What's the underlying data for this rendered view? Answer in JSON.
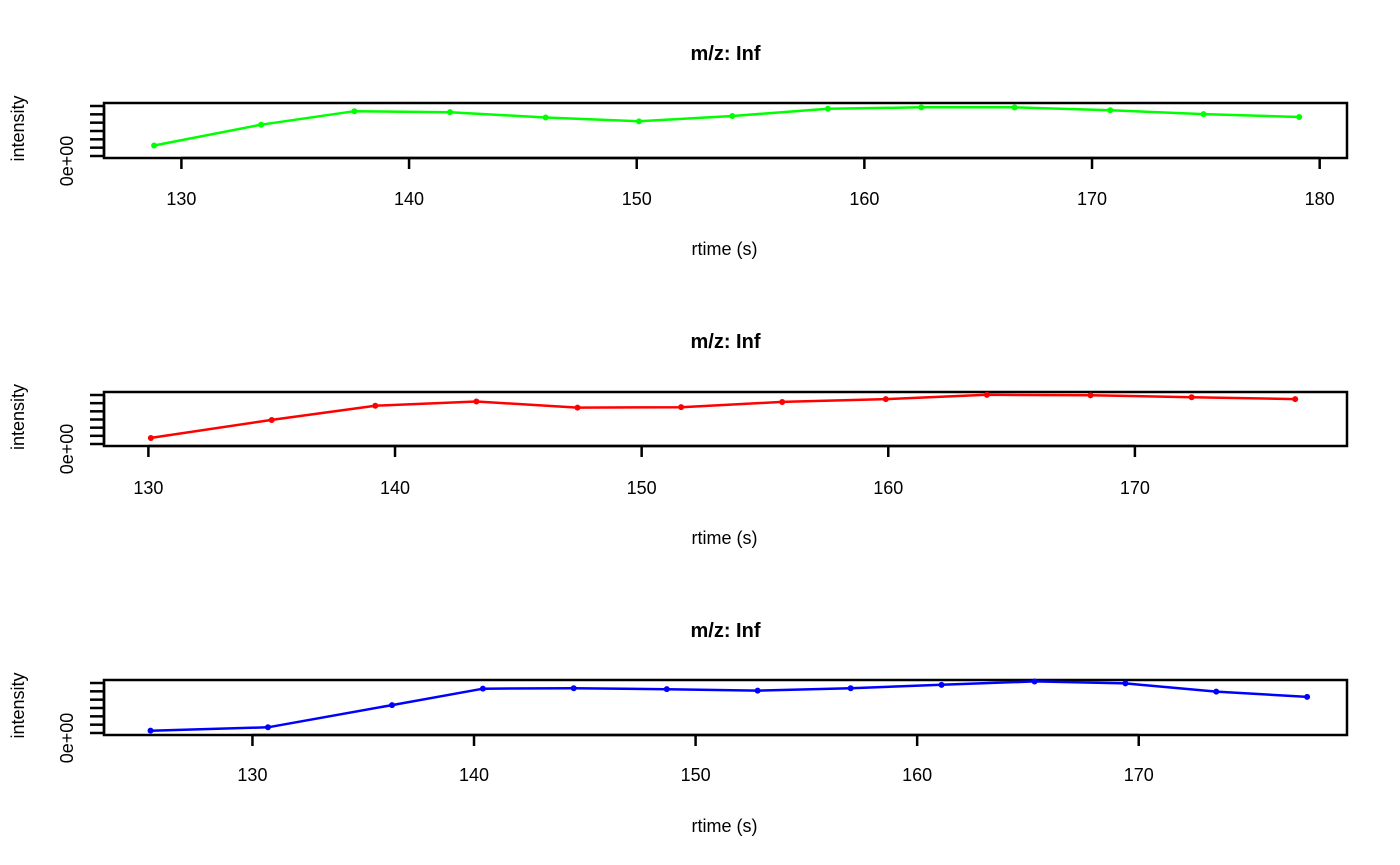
{
  "chart_data": [
    {
      "type": "line",
      "title": "m/z: Inf",
      "xlabel": "rtime (s)",
      "ylabel": "intensity",
      "y_tick_label": "0e+00",
      "xlim": [
        126.6,
        181.2
      ],
      "ylim": [
        -0.07,
        1.07
      ],
      "x_ticks": [
        130,
        140,
        150,
        160,
        170,
        180
      ],
      "y_minor_tick_count": 7,
      "grid": false,
      "color": "#00ff00",
      "series": [
        {
          "x": [
            128.8,
            133.5,
            137.6,
            141.8,
            146.0,
            150.1,
            154.2,
            158.4,
            162.5,
            166.6,
            170.8,
            174.9,
            179.1
          ],
          "y": [
            0.19,
            0.62,
            0.9,
            0.88,
            0.77,
            0.69,
            0.8,
            0.95,
            0.98,
            0.98,
            0.92,
            0.84,
            0.78
          ]
        }
      ]
    },
    {
      "type": "line",
      "title": "m/z: Inf",
      "xlabel": "rtime (s)",
      "ylabel": "intensity",
      "y_tick_label": "0e+00",
      "xlim": [
        128.2,
        178.6
      ],
      "ylim": [
        -0.07,
        1.07
      ],
      "x_ticks": [
        130,
        140,
        150,
        160,
        170
      ],
      "y_minor_tick_count": 7,
      "grid": false,
      "color": "#ff0000",
      "series": [
        {
          "x": [
            130.1,
            135.0,
            139.2,
            143.3,
            147.4,
            151.6,
            155.7,
            159.9,
            164.0,
            168.2,
            172.3,
            176.5
          ],
          "y": [
            0.1,
            0.48,
            0.78,
            0.87,
            0.74,
            0.75,
            0.86,
            0.92,
            1.01,
            1.0,
            0.96,
            0.92
          ]
        }
      ]
    },
    {
      "type": "line",
      "title": "m/z: Inf",
      "xlabel": "rtime (s)",
      "ylabel": "intensity",
      "y_tick_label": "0e+00",
      "xlim": [
        123.3,
        179.4
      ],
      "ylim": [
        -0.07,
        1.07
      ],
      "x_ticks": [
        130,
        140,
        150,
        160,
        170
      ],
      "y_minor_tick_count": 7,
      "grid": false,
      "color": "#0000ff",
      "series": [
        {
          "x": [
            125.4,
            130.7,
            136.3,
            140.4,
            144.5,
            148.7,
            152.8,
            157.0,
            161.1,
            165.3,
            169.4,
            173.5,
            177.6
          ],
          "y": [
            0.02,
            0.09,
            0.55,
            0.89,
            0.9,
            0.88,
            0.85,
            0.9,
            0.97,
            1.04,
            1.0,
            0.83,
            0.72
          ]
        }
      ]
    }
  ]
}
